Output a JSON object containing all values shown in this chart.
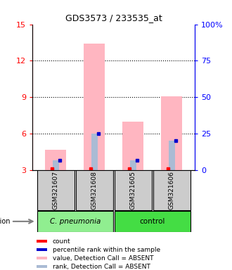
{
  "title": "GDS3573 / 233535_at",
  "samples": [
    "GSM321607",
    "GSM321608",
    "GSM321605",
    "GSM321606"
  ],
  "ylim_left": [
    3,
    15
  ],
  "ylim_right": [
    0,
    100
  ],
  "yticks_left": [
    3,
    6,
    9,
    12,
    15
  ],
  "yticks_right": [
    0,
    25,
    50,
    75,
    100
  ],
  "ytick_labels_right": [
    "0",
    "25",
    "50",
    "75",
    "100%"
  ],
  "pink_bar_values": [
    4.7,
    13.4,
    7.0,
    9.1
  ],
  "blue_bar_values": [
    3.8,
    6.0,
    3.8,
    5.4
  ],
  "pink_color": "#FFB6C1",
  "light_blue_color": "#AABBD4",
  "red_color": "#FF0000",
  "blue_color": "#0000CC",
  "cpneumonia_color": "#90EE90",
  "control_color": "#44DD44",
  "background_color": "#FFFFFF",
  "sample_box_color": "#CCCCCC",
  "legend_items": [
    {
      "label": "count",
      "color": "#FF0000"
    },
    {
      "label": "percentile rank within the sample",
      "color": "#0000CC"
    },
    {
      "label": "value, Detection Call = ABSENT",
      "color": "#FFB6C1"
    },
    {
      "label": "rank, Detection Call = ABSENT",
      "color": "#AABBD4"
    }
  ]
}
